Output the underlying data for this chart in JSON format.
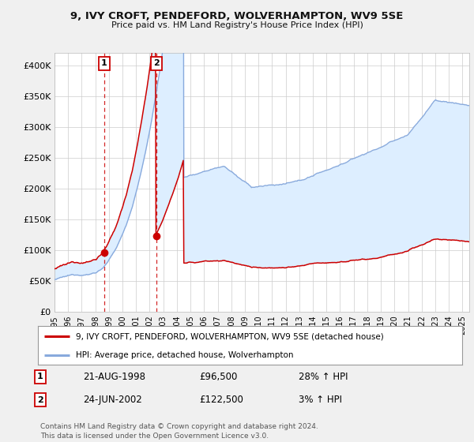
{
  "title": "9, IVY CROFT, PENDEFORD, WOLVERHAMPTON, WV9 5SE",
  "subtitle": "Price paid vs. HM Land Registry's House Price Index (HPI)",
  "bg_color": "#f0f0f0",
  "plot_bg_color": "#ffffff",
  "grid_color": "#cccccc",
  "line1_color": "#cc0000",
  "line2_color": "#88aadd",
  "shade_between_color": "#ddeeff",
  "purchase1_date": 1998.64,
  "purchase1_price": 96500,
  "purchase2_date": 2002.48,
  "purchase2_price": 122500,
  "legend_line1": "9, IVY CROFT, PENDEFORD, WOLVERHAMPTON, WV9 5SE (detached house)",
  "legend_line2": "HPI: Average price, detached house, Wolverhampton",
  "table_row1": [
    "1",
    "21-AUG-1998",
    "£96,500",
    "28% ↑ HPI"
  ],
  "table_row2": [
    "2",
    "24-JUN-2002",
    "£122,500",
    "3% ↑ HPI"
  ],
  "footer": "Contains HM Land Registry data © Crown copyright and database right 2024.\nThis data is licensed under the Open Government Licence v3.0.",
  "xmin": 1995.0,
  "xmax": 2025.5,
  "ylim": [
    0,
    420000
  ],
  "yticks": [
    0,
    50000,
    100000,
    150000,
    200000,
    250000,
    300000,
    350000,
    400000
  ],
  "ytick_labels": [
    "£0",
    "£50K",
    "£100K",
    "£150K",
    "£200K",
    "£250K",
    "£300K",
    "£350K",
    "£400K"
  ]
}
